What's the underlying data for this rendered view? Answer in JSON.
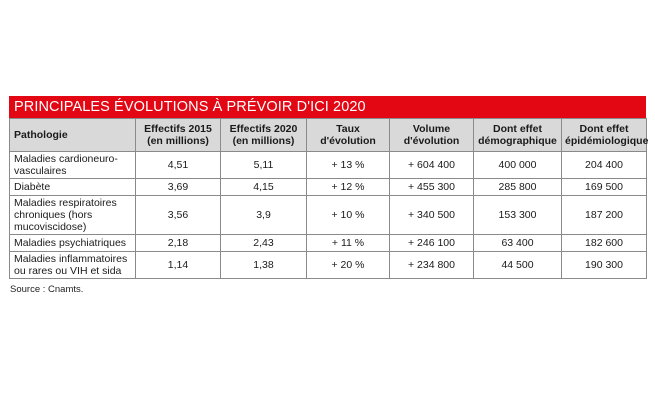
{
  "title": "PRINCIPALES ÉVOLUTIONS À PRÉVOIR D'ICI 2020",
  "colors": {
    "title_background": "#e30613",
    "title_text": "#ffffff",
    "header_background": "#d9d9d9"
  },
  "table": {
    "headers": [
      "Pathologie",
      "Effectifs 2015 (en millions)",
      "Effectifs 2020 (en millions)",
      "Taux d'évolution",
      "Volume d'évolution",
      "Dont effet démographique",
      "Dont effet épidémiologique"
    ],
    "rows": [
      [
        "Maladies cardioneuro-vasculaires",
        "4,51",
        "5,11",
        "+ 13 %",
        "+ 604 400",
        "400 000",
        "204 400"
      ],
      [
        "Diabète",
        "3,69",
        "4,15",
        "+ 12 %",
        "+ 455 300",
        "285 800",
        "169 500"
      ],
      [
        "Maladies respiratoires chroniques (hors mucoviscidose)",
        "3,56",
        "3,9",
        "+ 10 %",
        "+ 340 500",
        "153 300",
        "187 200"
      ],
      [
        "Maladies psychiatriques",
        "2,18",
        "2,43",
        "+ 11 %",
        "+ 246 100",
        "63 400",
        "182 600"
      ],
      [
        "Maladies inflammatoires ou rares ou VIH et sida",
        "1,14",
        "1,38",
        "+ 20 %",
        "+ 234 800",
        "44 500",
        "190 300"
      ]
    ]
  },
  "source": "Source : Cnamts."
}
